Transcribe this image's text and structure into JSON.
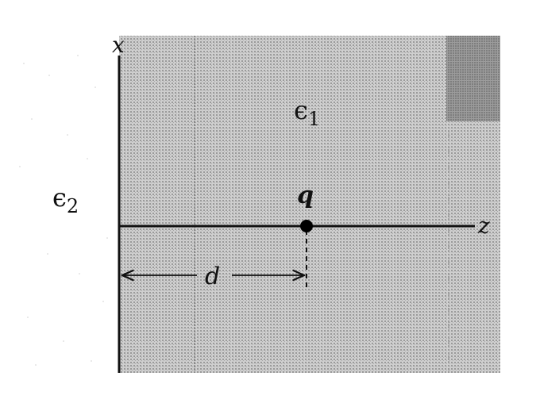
{
  "labels": {
    "x_axis": "x",
    "z_axis": "z",
    "epsilon_1": "ϵ",
    "epsilon_1_sub": "1",
    "epsilon_2": "ϵ",
    "epsilon_2_sub": "2",
    "charge": "q",
    "distance": "d"
  },
  "colors": {
    "region_1_fill": "#b9b9b9",
    "region_1_dark_corner": "#8e8e8e",
    "line": "#111111",
    "charge": "#000000"
  }
}
